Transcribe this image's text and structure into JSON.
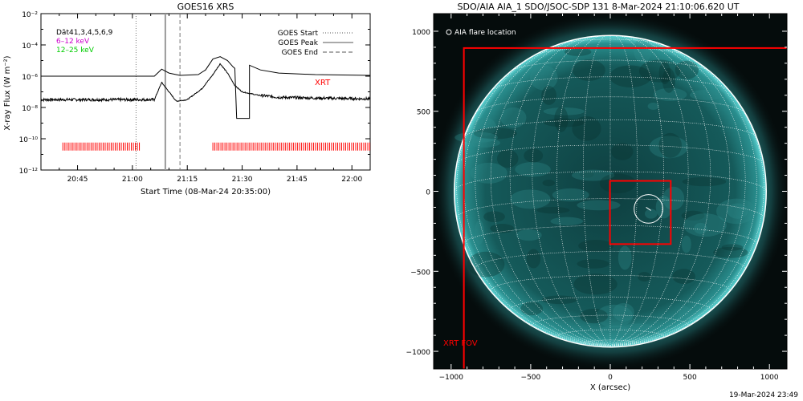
{
  "chart_data": [
    {
      "type": "line",
      "title": "GOES16 XRS",
      "xlabel": "Start Time (08-Mar-24 20:35:00)",
      "ylabel": "X-ray Flux (W m⁻²)",
      "yscale": "log",
      "ylim_exp": [
        -12,
        -2
      ],
      "xlim_minutes": [
        35,
        125
      ],
      "x_ticks": [
        {
          "m": 45,
          "label": "20:45"
        },
        {
          "m": 60,
          "label": "21:00"
        },
        {
          "m": 75,
          "label": "21:15"
        },
        {
          "m": 90,
          "label": "21:30"
        },
        {
          "m": 105,
          "label": "21:45"
        },
        {
          "m": 120,
          "label": "22:00"
        }
      ],
      "y_ticks": [
        {
          "e": -2,
          "label": "10⁻²"
        },
        {
          "e": -4,
          "label": "10⁻⁴"
        },
        {
          "e": -6,
          "label": "10⁻⁶"
        },
        {
          "e": -8,
          "label": "10⁻⁸"
        },
        {
          "e": -10,
          "label": "10⁻¹⁰"
        },
        {
          "e": -12,
          "label": "10⁻¹²"
        }
      ],
      "legend_left": [
        {
          "text": "Dāt41,3,4,5,6,9",
          "color": "#000000"
        },
        {
          "text": "6–12 keV",
          "color": "#cc00cc"
        },
        {
          "text": "12–25 keV",
          "color": "#00cc00"
        }
      ],
      "legend_right": [
        {
          "text": "GOES Start",
          "dash": "dotted"
        },
        {
          "text": "GOES Peak",
          "dash": "solid"
        },
        {
          "text": "GOES End",
          "dash": "dashed"
        }
      ],
      "xrt_label": "XRT",
      "event_markers_minutes": {
        "start": 61,
        "peak": 69,
        "end": 73
      },
      "series": [
        {
          "name": "long",
          "color": "#000000",
          "points": [
            [
              35,
              -6.0
            ],
            [
              66,
              -6.0
            ],
            [
              68,
              -5.55
            ],
            [
              70,
              -5.8
            ],
            [
              73,
              -5.95
            ],
            [
              78,
              -5.9
            ],
            [
              80,
              -5.6
            ],
            [
              82,
              -4.9
            ],
            [
              84,
              -4.75
            ],
            [
              86,
              -5.0
            ],
            [
              87.5,
              -5.4
            ],
            [
              88,
              -5.5
            ],
            [
              88.5,
              -8.7
            ],
            [
              92,
              -8.7
            ],
            [
              92,
              -5.3
            ],
            [
              95,
              -5.6
            ],
            [
              100,
              -5.8
            ],
            [
              110,
              -5.9
            ],
            [
              125,
              -5.95
            ]
          ]
        },
        {
          "name": "short",
          "color": "#000000",
          "noisy": true,
          "points": [
            [
              35,
              -7.5
            ],
            [
              66,
              -7.5
            ],
            [
              68,
              -6.4
            ],
            [
              70,
              -7.0
            ],
            [
              72,
              -7.6
            ],
            [
              75,
              -7.5
            ],
            [
              79,
              -6.8
            ],
            [
              82,
              -5.9
            ],
            [
              84,
              -5.2
            ],
            [
              86,
              -5.8
            ],
            [
              88,
              -6.6
            ],
            [
              90,
              -7.0
            ],
            [
              94,
              -7.2
            ],
            [
              100,
              -7.35
            ],
            [
              110,
              -7.4
            ],
            [
              125,
              -7.45
            ]
          ]
        }
      ],
      "xrt_coverage_minutes": [
        [
          41,
          62
        ],
        [
          82,
          125
        ]
      ]
    },
    {
      "type": "image",
      "title": "SDO/AIA AIA_1 SDO/JSOC-SDP 131  8-Mar-2024 21:10:06.620 UT",
      "xlabel": "X (arcsec)",
      "xlim": [
        -1110,
        1110
      ],
      "ylim": [
        -1110,
        1110
      ],
      "x_ticks": [
        -1000,
        -500,
        0,
        500,
        1000
      ],
      "y_ticks": [
        -1000,
        -500,
        0,
        500,
        1000
      ],
      "x_tick_labels": [
        "−1000",
        "−500",
        "0",
        "500",
        "1000"
      ],
      "y_tick_labels": [
        "1000",
        "500",
        "0",
        "−500",
        "−1000"
      ],
      "legend": "AIA flare location",
      "fov_label": "XRT FOV",
      "solar_radius_arcsec": 980,
      "grid_step_deg": 10,
      "outer_fov_arcsec": [
        -920,
        1125,
        -1120,
        895
      ],
      "inner_fov_arcsec": [
        -2,
        380,
        -330,
        65
      ],
      "flare_circle": {
        "x": 240,
        "y": -110,
        "r": 90
      },
      "colors": {
        "fov": "#ff0000",
        "disk": "#0c4a4a",
        "limb": "#4fcfcf",
        "grid": "#ffffff"
      }
    }
  ],
  "footer": {
    "timestamp": "19-Mar-2024 23:49"
  }
}
